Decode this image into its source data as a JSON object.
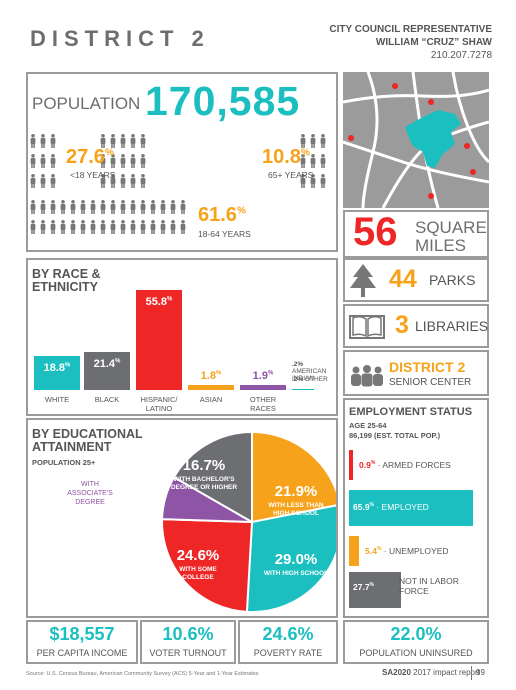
{
  "header": {
    "title": "DISTRICT 2",
    "rep_title": "CITY COUNCIL REPRESENTATIVE",
    "rep_name": "WILLIAM “CRUZ” SHAW",
    "rep_phone": "210.207.7278"
  },
  "population": {
    "label": "POPULATION",
    "value": "170,585",
    "under18_pct": "27.6",
    "under18_label": "<18 YEARS",
    "over65_pct": "10.8",
    "over65_label": "65+ YEARS",
    "adult_pct": "61.6",
    "adult_label": "18-64 YEARS"
  },
  "area": {
    "value": "56",
    "line1": "SQUARE",
    "line2": "MILES"
  },
  "amenities": {
    "parks_value": "44",
    "parks_label": "PARKS",
    "libraries_value": "3",
    "libraries_label": "LIBRARIES",
    "senior_title": "DISTRICT 2",
    "senior_label": "SENIOR CENTER"
  },
  "race": {
    "title_line1": "BY RACE &",
    "title_line2": "ETHNICITY",
    "bars": [
      {
        "label": "WHITE",
        "value": 18.8,
        "value_text": "18.8",
        "color": "#1bbfbf"
      },
      {
        "label": "BLACK",
        "value": 21.4,
        "value_text": "21.4",
        "color": "#6d6e71"
      },
      {
        "label": "HISPANIC/ LATINO",
        "value": 55.8,
        "value_text": "55.8",
        "color": "#ee2626"
      },
      {
        "label": "ASIAN",
        "value": 1.8,
        "value_text": "1.8",
        "color": "#f7a21b"
      },
      {
        "label": "OTHER RACES",
        "value": 1.9,
        "value_text": "1.9",
        "color": "#8e54a5"
      }
    ],
    "small_items": [
      {
        "value": ".2%",
        "label": "AMERICAN INDIAN"
      },
      {
        "value": ".2%",
        "label": "OTHER"
      }
    ]
  },
  "education": {
    "title_line1": "BY EDUCATIONAL",
    "title_line2": "ATTAINMENT",
    "subtitle": "POPULATION 25+",
    "slices": [
      {
        "value": 21.9,
        "value_text": "21.9",
        "label": "WITH LESS THAN HIGH SCHOOL",
        "color": "#f7a21b"
      },
      {
        "value": 29.0,
        "value_text": "29.0",
        "label": "WITH HIGH SCHOOL",
        "color": "#1bbfbf"
      },
      {
        "value": 24.6,
        "value_text": "24.6",
        "label": "WITH SOME COLLEGE",
        "color": "#ee2626"
      },
      {
        "value": 7.8,
        "value_text": "7.8",
        "label": "WITH ASSOCIATE'S DEGREE",
        "color": "#8e54a5"
      },
      {
        "value": 16.7,
        "value_text": "16.7",
        "label": "WITH BACHELOR'S DEGREE OR HIGHER",
        "color": "#6d6e71"
      }
    ]
  },
  "employment": {
    "title": "EMPLOYMENT STATUS",
    "age": "AGE 25-64",
    "pop_note": "86,199 (EST. TOTAL POP.)",
    "items": [
      {
        "value_text": "0.9",
        "label": "ARMED FORCES",
        "value": 0.9,
        "color": "#ee2626"
      },
      {
        "value_text": "65.9",
        "label": "EMPLOYED",
        "value": 65.9,
        "color": "#1bbfbf"
      },
      {
        "value_text": "5.4",
        "label": "UNEMPLOYED",
        "value": 5.4,
        "color": "#f7a21b"
      },
      {
        "value_text": "27.7",
        "label": "NOT IN LABOR FORCE",
        "value": 27.7,
        "color": "#6d6e71"
      }
    ]
  },
  "footer_stats": [
    {
      "value": "$18,557",
      "label": "PER CAPITA INCOME"
    },
    {
      "value": "10.6%",
      "label": "VOTER TURNOUT"
    },
    {
      "value": "24.6%",
      "label": "POVERTY RATE"
    },
    {
      "value": "22.0%",
      "label": "POPULATION UNINSURED"
    }
  ],
  "footer": {
    "source": "Source: U.S. Census Bureau, American Community Survey (ACS) 5-Year and 1-Year Estimates",
    "report_bold": "SA2020",
    "report_rest": "2017 impact report",
    "page": "99"
  },
  "chart_data": [
    {
      "type": "bar",
      "title": "BY RACE & ETHNICITY",
      "categories": [
        "WHITE",
        "BLACK",
        "HISPANIC/LATINO",
        "ASIAN",
        "OTHER RACES"
      ],
      "values": [
        18.8,
        21.4,
        55.8,
        1.8,
        1.9
      ]
    },
    {
      "type": "pie",
      "title": "BY EDUCATIONAL ATTAINMENT",
      "categories": [
        "WITH LESS THAN HIGH SCHOOL",
        "WITH HIGH SCHOOL",
        "WITH SOME COLLEGE",
        "WITH ASSOCIATE'S DEGREE",
        "WITH BACHELOR'S DEGREE OR HIGHER"
      ],
      "values": [
        21.9,
        29.0,
        24.6,
        7.8,
        16.7
      ]
    },
    {
      "type": "bar",
      "title": "EMPLOYMENT STATUS",
      "categories": [
        "ARMED FORCES",
        "EMPLOYED",
        "UNEMPLOYED",
        "NOT IN LABOR FORCE"
      ],
      "values": [
        0.9,
        65.9,
        5.4,
        27.7
      ]
    }
  ]
}
